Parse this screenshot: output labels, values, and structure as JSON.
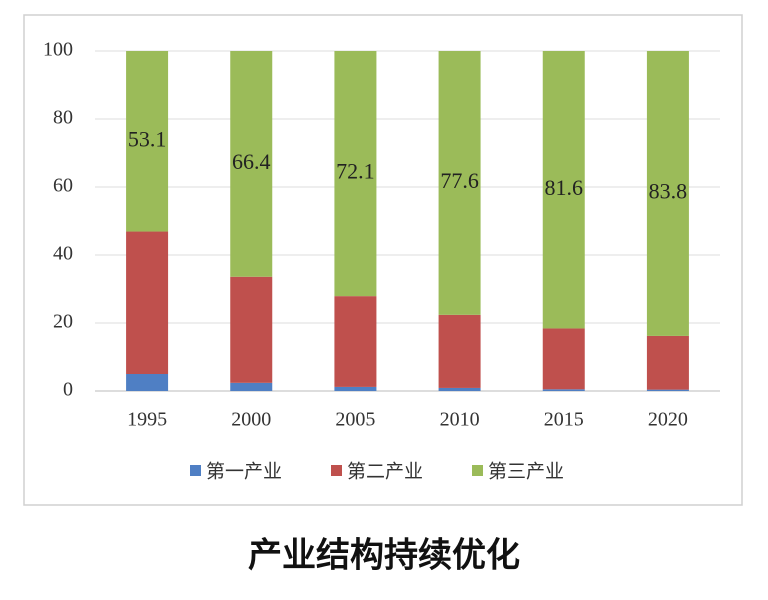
{
  "chart_data": {
    "type": "stacked-bar",
    "title": "产业结构持续优化",
    "categories": [
      "1995",
      "2000",
      "2005",
      "2010",
      "2015",
      "2020"
    ],
    "series": [
      {
        "name": "第一产业",
        "color": "#4f7fc4",
        "values": [
          5.0,
          2.4,
          1.2,
          0.9,
          0.5,
          0.4
        ]
      },
      {
        "name": "第二产业",
        "color": "#bf504d",
        "values": [
          41.9,
          31.2,
          26.7,
          21.5,
          17.9,
          15.8
        ]
      },
      {
        "name": "第三产业",
        "color": "#9bbb59",
        "values": [
          53.1,
          66.4,
          72.1,
          77.6,
          81.6,
          83.8
        ],
        "show_labels": true
      }
    ],
    "ylim": [
      0,
      100
    ],
    "yticks": [
      0,
      20,
      40,
      60,
      80,
      100
    ],
    "grid": true,
    "legend": "bottom"
  }
}
